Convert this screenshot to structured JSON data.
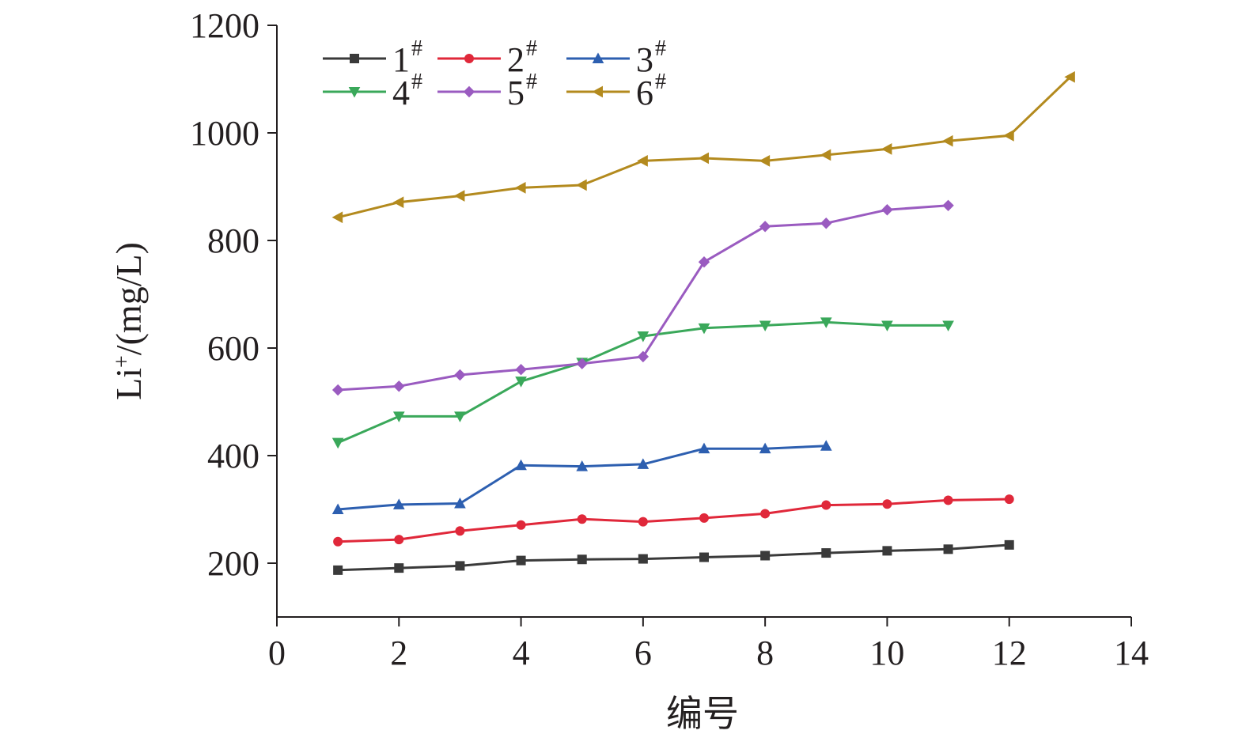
{
  "chart_data": {
    "type": "line",
    "xlabel": "编号",
    "ylabel_main": "Li",
    "ylabel_sup": "+",
    "ylabel_rest": "/(mg/L)",
    "xlim": [
      0,
      14
    ],
    "ylim": [
      100,
      1200
    ],
    "x_ticks": [
      "0",
      "2",
      "4",
      "6",
      "8",
      "10",
      "12",
      "14"
    ],
    "y_ticks": [
      "200",
      "400",
      "600",
      "800",
      "1000",
      "1200"
    ],
    "grid": false,
    "legend_position": "top-left",
    "series": [
      {
        "name": "1",
        "sup": "#",
        "color": "#3a3a3a",
        "marker": "square",
        "x": [
          1,
          2,
          3,
          4,
          5,
          6,
          7,
          8,
          9,
          10,
          11,
          12
        ],
        "y": [
          187,
          191,
          195,
          205,
          207,
          208,
          211,
          214,
          219,
          223,
          226,
          234
        ]
      },
      {
        "name": "2",
        "sup": "#",
        "color": "#e0283a",
        "marker": "circle",
        "x": [
          1,
          2,
          3,
          4,
          5,
          6,
          7,
          8,
          9,
          10,
          11,
          12
        ],
        "y": [
          240,
          244,
          260,
          271,
          282,
          277,
          284,
          292,
          308,
          310,
          317,
          319
        ]
      },
      {
        "name": "3",
        "sup": "#",
        "color": "#2d5fb0",
        "marker": "triangle-up",
        "x": [
          1,
          2,
          3,
          4,
          5,
          6,
          7,
          8,
          9
        ],
        "y": [
          300,
          309,
          311,
          382,
          380,
          384,
          413,
          413,
          418
        ]
      },
      {
        "name": "4",
        "sup": "#",
        "color": "#3aa85a",
        "marker": "triangle-down",
        "x": [
          1,
          2,
          3,
          4,
          5,
          6,
          7,
          8,
          9,
          10,
          11
        ],
        "y": [
          424,
          473,
          473,
          538,
          573,
          622,
          637,
          642,
          648,
          642,
          642
        ]
      },
      {
        "name": "5",
        "sup": "#",
        "color": "#9a5bc0",
        "marker": "diamond",
        "x": [
          1,
          2,
          3,
          4,
          5,
          6,
          7,
          8,
          9,
          10,
          11
        ],
        "y": [
          522,
          529,
          550,
          560,
          571,
          584,
          760,
          826,
          832,
          857,
          865
        ]
      },
      {
        "name": "6",
        "sup": "#",
        "color": "#b38a1e",
        "marker": "triangle-left",
        "x": [
          1,
          2,
          3,
          4,
          5,
          6,
          7,
          8,
          9,
          10,
          11,
          12,
          13
        ],
        "y": [
          843,
          871,
          883,
          898,
          903,
          948,
          953,
          948,
          959,
          970,
          985,
          995,
          1104
        ]
      }
    ]
  }
}
